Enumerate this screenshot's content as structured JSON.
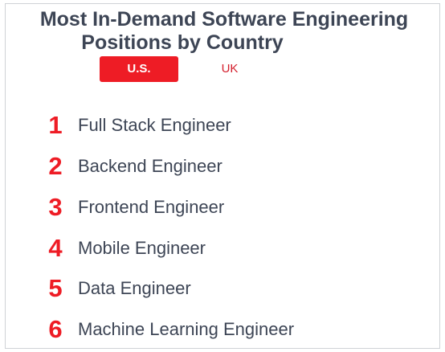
{
  "title": {
    "line1": "Most In-Demand Software Engineering",
    "line2": "Positions by Country"
  },
  "tabs": [
    {
      "label": "U.S.",
      "active": true
    },
    {
      "label": "UK",
      "active": false
    }
  ],
  "positions": [
    {
      "rank": "1",
      "title": "Full Stack Engineer"
    },
    {
      "rank": "2",
      "title": "Backend Engineer"
    },
    {
      "rank": "3",
      "title": "Frontend Engineer"
    },
    {
      "rank": "4",
      "title": "Mobile Engineer"
    },
    {
      "rank": "5",
      "title": "Data Engineer"
    },
    {
      "rank": "6",
      "title": "Machine Learning Engineer"
    }
  ],
  "colors": {
    "accent": "#ee1c25",
    "text": "#3d4555",
    "border": "#cfd2d6"
  }
}
